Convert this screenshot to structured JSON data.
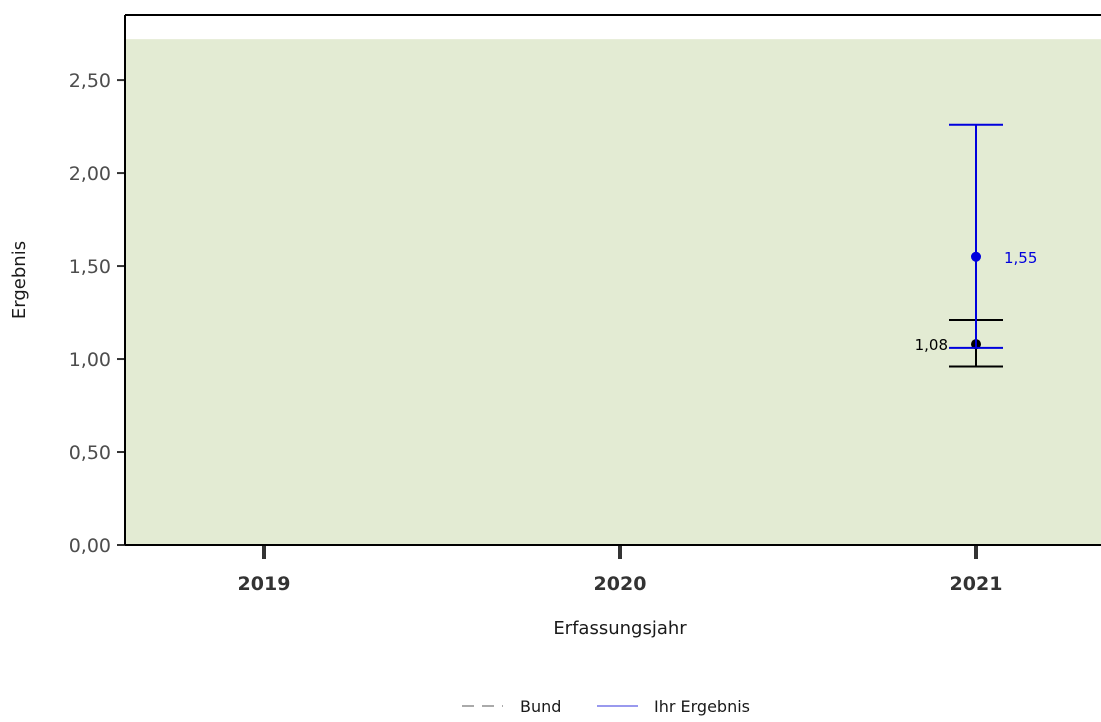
{
  "chart_data": {
    "type": "scatter",
    "title": "",
    "xlabel": "Erfassungsjahr",
    "ylabel": "Ergebnis",
    "categories": [
      "2019",
      "2020",
      "2021"
    ],
    "y_ticks": [
      "0,00",
      "0,50",
      "1,00",
      "1,50",
      "2,00",
      "2,50"
    ],
    "y_tick_values": [
      0,
      0.5,
      1.0,
      1.5,
      2.0,
      2.5
    ],
    "ylim": [
      0,
      2.85
    ],
    "grid": false,
    "reference_band": {
      "from": 0,
      "to": 2.72,
      "color": "#e3ebd3"
    },
    "legend_position": "bottom",
    "legend": [
      {
        "name": "Bund",
        "style": "dashed",
        "color": "#aaaaaa"
      },
      {
        "name": "Ihr Ergebnis",
        "style": "solid",
        "color": "#9999ee"
      }
    ],
    "series": [
      {
        "name": "Bund",
        "color": "#000000",
        "points": [
          {
            "x": "2021",
            "y": 1.08,
            "lower": 0.96,
            "upper": 1.21,
            "label": "1,08"
          }
        ]
      },
      {
        "name": "Ihr Ergebnis",
        "color": "#0000dd",
        "points": [
          {
            "x": "2021",
            "y": 1.55,
            "lower": 1.06,
            "upper": 2.26,
            "label": "1,55"
          }
        ]
      }
    ]
  }
}
